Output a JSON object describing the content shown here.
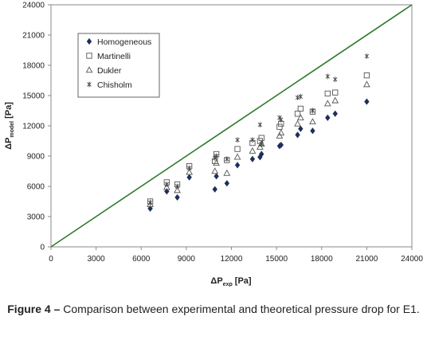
{
  "chart_data": {
    "type": "scatter",
    "xlabel": {
      "main": "ΔP",
      "sub": "exp",
      "unit": "[Pa]"
    },
    "ylabel": {
      "main": "ΔP",
      "sub": "model",
      "unit": "[Pa]"
    },
    "xlim": [
      0,
      24000
    ],
    "ylim": [
      0,
      24000
    ],
    "xticks": [
      0,
      3000,
      6000,
      9000,
      12000,
      15000,
      18000,
      21000,
      24000
    ],
    "yticks": [
      0,
      3000,
      6000,
      9000,
      12000,
      15000,
      18000,
      21000,
      24000
    ],
    "grid": false,
    "legend_position": "top-left",
    "reference_line": {
      "x": [
        0,
        24000
      ],
      "y": [
        0,
        24000
      ],
      "color": "#2e7a2e"
    },
    "series": [
      {
        "name": "Homogeneous",
        "marker": "diamond",
        "color": "#1f2f5c",
        "points": [
          [
            6600,
            3800
          ],
          [
            7700,
            5500
          ],
          [
            8400,
            4900
          ],
          [
            9200,
            6900
          ],
          [
            10900,
            5700
          ],
          [
            11000,
            7000
          ],
          [
            11700,
            6300
          ],
          [
            12400,
            8100
          ],
          [
            13400,
            8700
          ],
          [
            13900,
            8900
          ],
          [
            14000,
            9200
          ],
          [
            15200,
            10000
          ],
          [
            15300,
            10100
          ],
          [
            16400,
            11100
          ],
          [
            16600,
            11700
          ],
          [
            17400,
            11500
          ],
          [
            18400,
            12800
          ],
          [
            18900,
            13200
          ],
          [
            21000,
            14400
          ]
        ]
      },
      {
        "name": "Martinelli",
        "marker": "square",
        "color": "#555555",
        "points": [
          [
            6600,
            4500
          ],
          [
            7700,
            6400
          ],
          [
            8400,
            6200
          ],
          [
            9200,
            8000
          ],
          [
            10900,
            8500
          ],
          [
            11000,
            9200
          ],
          [
            11700,
            8600
          ],
          [
            12400,
            9700
          ],
          [
            13400,
            10300
          ],
          [
            13900,
            10500
          ],
          [
            14000,
            10800
          ],
          [
            15200,
            11900
          ],
          [
            15300,
            12200
          ],
          [
            16400,
            13200
          ],
          [
            16600,
            13700
          ],
          [
            17400,
            13400
          ],
          [
            18400,
            15200
          ],
          [
            18900,
            15300
          ],
          [
            21000,
            17000
          ]
        ]
      },
      {
        "name": "Dukler",
        "marker": "triangle",
        "color": "#555555",
        "points": [
          [
            6600,
            4200
          ],
          [
            7700,
            5900
          ],
          [
            8400,
            5600
          ],
          [
            9200,
            7400
          ],
          [
            10900,
            7500
          ],
          [
            11000,
            8300
          ],
          [
            11700,
            7300
          ],
          [
            12400,
            8900
          ],
          [
            13400,
            9500
          ],
          [
            13900,
            9900
          ],
          [
            14000,
            10200
          ],
          [
            15200,
            11000
          ],
          [
            15300,
            11300
          ],
          [
            16400,
            12200
          ],
          [
            16600,
            12800
          ],
          [
            17400,
            12400
          ],
          [
            18400,
            14200
          ],
          [
            18900,
            14500
          ],
          [
            21000,
            16100
          ]
        ]
      },
      {
        "name": "Chisholm",
        "marker": "star",
        "color": "#444444",
        "points": [
          [
            6600,
            4400
          ],
          [
            7700,
            6200
          ],
          [
            8400,
            6000
          ],
          [
            9200,
            7800
          ],
          [
            10900,
            8800
          ],
          [
            11000,
            9000
          ],
          [
            11700,
            8700
          ],
          [
            12400,
            10600
          ],
          [
            13400,
            10600
          ],
          [
            13900,
            12100
          ],
          [
            14000,
            10200
          ],
          [
            15200,
            12800
          ],
          [
            15300,
            12600
          ],
          [
            16400,
            14800
          ],
          [
            16600,
            14900
          ],
          [
            17400,
            13500
          ],
          [
            18400,
            16900
          ],
          [
            18900,
            16600
          ],
          [
            21000,
            18900
          ]
        ]
      }
    ]
  },
  "caption": {
    "label": "Figure 4 –",
    "text": "Comparison between experimental and theoretical pressure drop for E1."
  }
}
